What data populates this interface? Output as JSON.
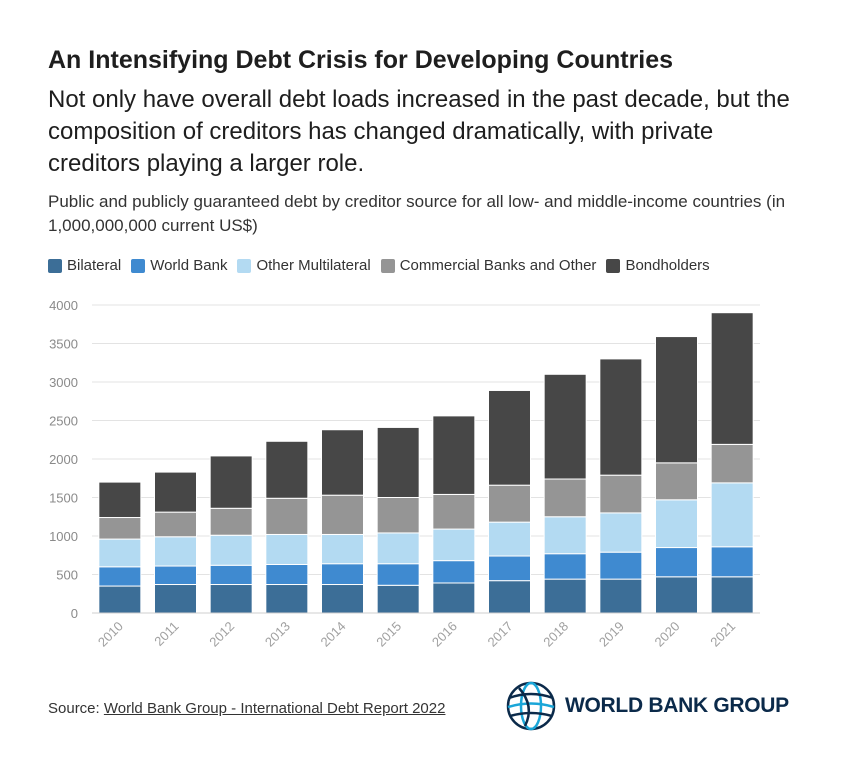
{
  "header": {
    "title": "An Intensifying Debt Crisis for Developing Countries",
    "subtitle": "Not only have overall debt loads increased in the past decade, but the composition of creditors has changed dramatically, with private creditors playing a larger role.",
    "description": "Public and publicly guaranteed debt by creditor source for all low- and middle-income countries (in 1,000,000,000 current US$)"
  },
  "footer": {
    "source_prefix": "Source: ",
    "source_link": "World Bank Group - International Debt Report 2022",
    "logo_text": "WORLD BANK GROUP",
    "logo_icon": "globe-icon"
  },
  "chart_data": {
    "type": "bar",
    "stacked": true,
    "categories": [
      "2010",
      "2011",
      "2012",
      "2013",
      "2014",
      "2015",
      "2016",
      "2017",
      "2018",
      "2019",
      "2020",
      "2021"
    ],
    "series": [
      {
        "name": "Bilateral",
        "color": "#3c6e97",
        "values": [
          350,
          370,
          370,
          370,
          370,
          360,
          390,
          420,
          440,
          440,
          470,
          470
        ]
      },
      {
        "name": "World Bank",
        "color": "#3f8ad0",
        "values": [
          250,
          240,
          250,
          260,
          270,
          280,
          290,
          320,
          330,
          350,
          380,
          390
        ]
      },
      {
        "name": "Other Multilateral",
        "color": "#b3daf2",
        "values": [
          360,
          380,
          390,
          390,
          380,
          400,
          410,
          440,
          480,
          510,
          620,
          830
        ]
      },
      {
        "name": "Commercial Banks and Other",
        "color": "#959595",
        "values": [
          280,
          320,
          350,
          470,
          510,
          460,
          450,
          480,
          490,
          490,
          480,
          500
        ]
      },
      {
        "name": "Bondholders",
        "color": "#474747",
        "values": [
          460,
          520,
          680,
          740,
          850,
          910,
          1020,
          1230,
          1360,
          1510,
          1640,
          1710
        ]
      }
    ],
    "ylim": [
      0,
      4000
    ],
    "yticks": [
      0,
      500,
      1000,
      1500,
      2000,
      2500,
      3000,
      3500,
      4000
    ],
    "grid": true,
    "legend_position": "top-left"
  }
}
